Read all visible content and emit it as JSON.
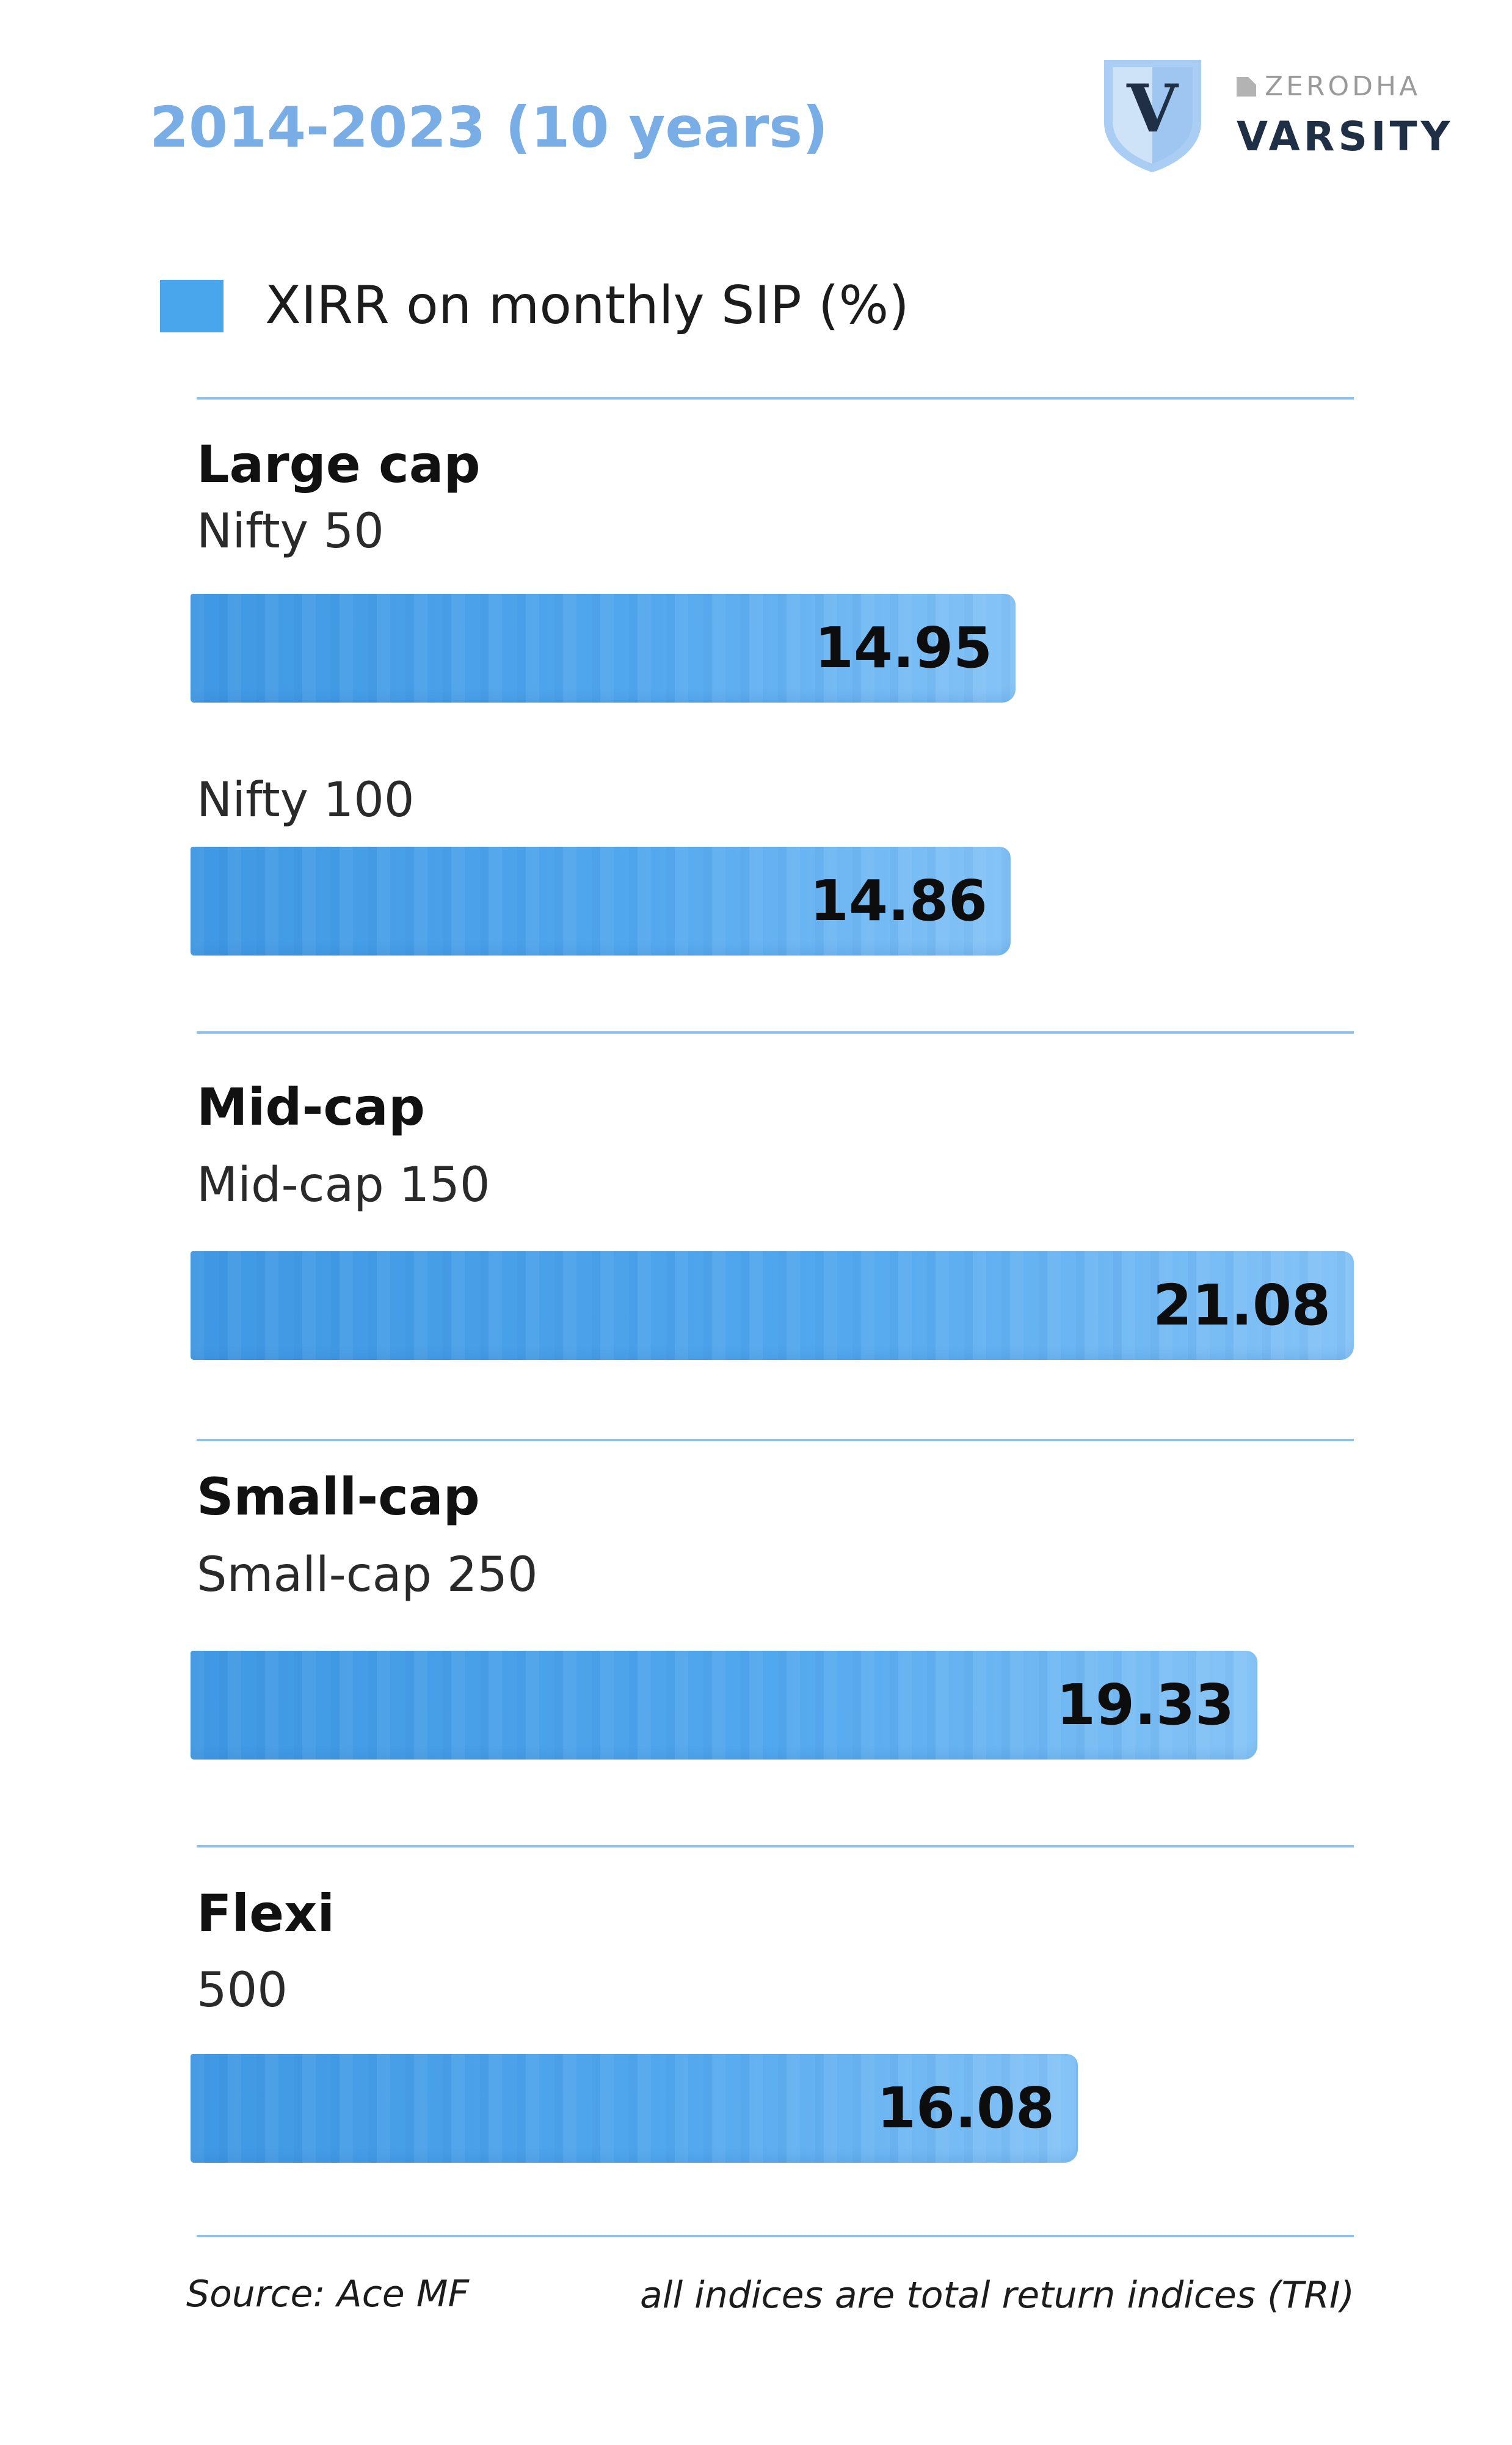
{
  "chart_data": {
    "type": "bar",
    "orientation": "horizontal",
    "title": "2014-2023 (10 years)",
    "legend": [
      "XIRR on monthly SIP (%)"
    ],
    "groups": [
      {
        "name": "Large cap",
        "items": [
          {
            "label": "Nifty 50",
            "value": 14.95,
            "value_text": "14.95"
          },
          {
            "label": "Nifty 100",
            "value": 14.86,
            "value_text": "14.86"
          }
        ]
      },
      {
        "name": "Mid-cap",
        "items": [
          {
            "label": "Mid-cap 150",
            "value": 21.08,
            "value_text": "21.08"
          }
        ]
      },
      {
        "name": "Small-cap",
        "items": [
          {
            "label": "Small-cap 250",
            "value": 19.33,
            "value_text": "19.33"
          }
        ]
      },
      {
        "name": "Flexi",
        "items": [
          {
            "label": "500",
            "value": 16.08,
            "value_text": "16.08"
          }
        ]
      }
    ],
    "bar_color": "#4aa6ec",
    "grid": false
  },
  "brand": {
    "parent": "ZERODHA",
    "name": "VARSITY",
    "monogram": "V"
  },
  "footer": {
    "source": "Source: Ace MF",
    "note": "all indices are total return indices (TRI)"
  },
  "colors": {
    "title": "#79ade6",
    "divider": "#8fc0ea",
    "brand_dark": "#1f2f45"
  }
}
